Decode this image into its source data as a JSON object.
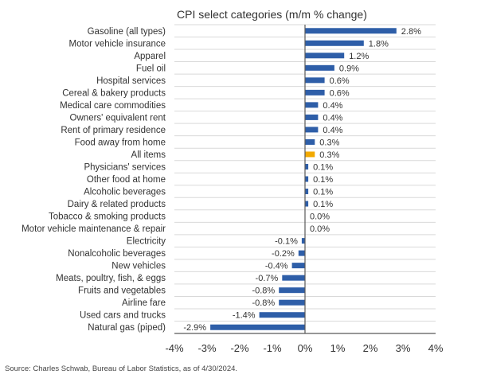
{
  "chart_data": {
    "type": "bar",
    "orientation": "horizontal",
    "title": "CPI select categories (m/m % change)",
    "source": "Source: Charles Schwab, Bureau of Labor Statistics, as of 4/30/2024.",
    "categories": [
      "Gasoline (all types)",
      "Motor vehicle insurance",
      "Apparel",
      "Fuel oil",
      "Hospital services",
      "Cereal & bakery products",
      "Medical care commodities",
      "Owners' equivalent rent",
      "Rent of primary residence",
      "Food away from home",
      "All items",
      "Physicians' services",
      "Other food at home",
      "Alcoholic beverages",
      "Dairy & related products",
      "Tobacco & smoking products",
      "Motor vehicle maintenance & repair",
      "Electricity",
      "Nonalcoholic beverages",
      "New vehicles",
      "Meats, poultry, fish, & eggs",
      "Fruits and vegetables",
      "Airline fare",
      "Used cars and trucks",
      "Natural gas (piped)"
    ],
    "values": [
      2.8,
      1.8,
      1.2,
      0.9,
      0.6,
      0.6,
      0.4,
      0.4,
      0.4,
      0.3,
      0.3,
      0.1,
      0.1,
      0.1,
      0.1,
      0.0,
      0.0,
      -0.1,
      -0.2,
      -0.4,
      -0.7,
      -0.8,
      -0.8,
      -1.4,
      -2.9
    ],
    "labels": [
      "2.8%",
      "1.8%",
      "1.2%",
      "0.9%",
      "0.6%",
      "0.6%",
      "0.4%",
      "0.4%",
      "0.4%",
      "0.3%",
      "0.3%",
      "0.1%",
      "0.1%",
      "0.1%",
      "0.1%",
      "0.0%",
      "0.0%",
      "-0.1%",
      "-0.2%",
      "-0.4%",
      "-0.7%",
      "-0.8%",
      "-0.8%",
      "-1.4%",
      "-2.9%"
    ],
    "highlight": "All items",
    "xlim": [
      -4,
      4
    ],
    "xticks": [
      -4,
      -3,
      -2,
      -1,
      0,
      1,
      2,
      3,
      4
    ],
    "xtick_labels": [
      "-4%",
      "-3%",
      "-2%",
      "-1%",
      "0%",
      "1%",
      "2%",
      "3%",
      "4%"
    ],
    "xlabel": "",
    "ylabel": "",
    "grid": "horizontal",
    "colors": {
      "bar": "#2e5ea8",
      "highlight": "#f2a900",
      "grid": "#d9d9d9",
      "axis": "#595959",
      "text": "#333333"
    }
  }
}
